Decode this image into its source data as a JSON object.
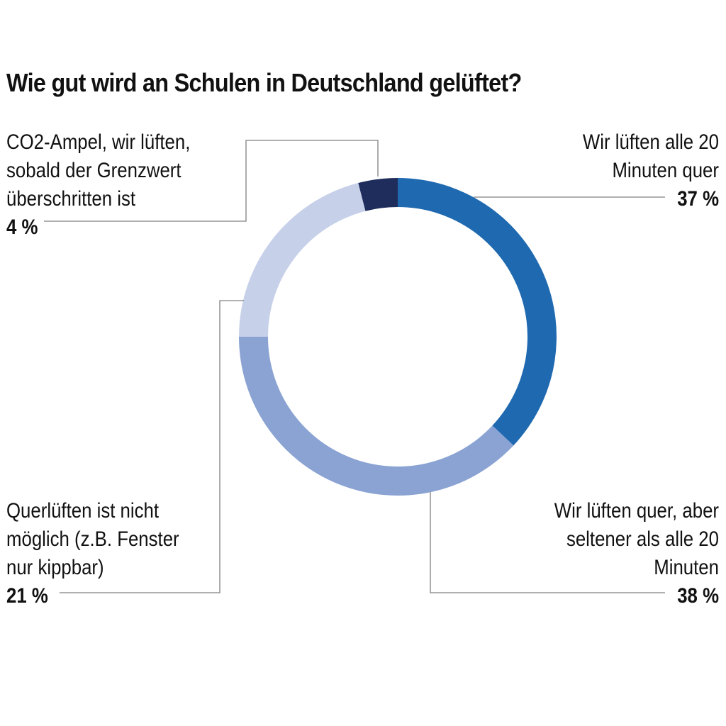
{
  "chart_data": {
    "type": "pie",
    "title": "Wie gut wird an Schulen in Deutschland gelüftet?",
    "slices": [
      {
        "label_lines": [
          "Wir lüften alle 20",
          "Minuten quer"
        ],
        "percent_label": "37 %",
        "value": 37,
        "color": "#1f69b0"
      },
      {
        "label_lines": [
          "Wir lüften quer, aber",
          "seltener als alle 20",
          "Minuten"
        ],
        "percent_label": "38 %",
        "value": 38,
        "color": "#8aa3d3"
      },
      {
        "label_lines": [
          "Querlüften ist nicht",
          "möglich (z.B. Fenster",
          "nur kippbar)"
        ],
        "percent_label": "21 %",
        "value": 21,
        "color": "#c6d0e9"
      },
      {
        "label_lines": [
          "CO2-Ampel, wir lüften,",
          "sobald der Grenzwert",
          "überschritten ist"
        ],
        "percent_label": "4 %",
        "value": 4,
        "color": "#1f2d5c"
      }
    ]
  }
}
